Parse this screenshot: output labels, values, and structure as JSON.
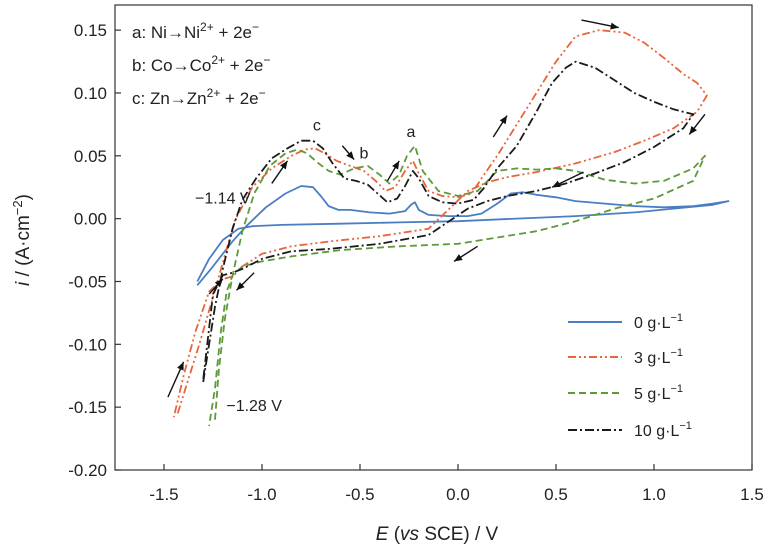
{
  "chart_data": {
    "type": "line",
    "title": "",
    "xlabel": "E (vs SCE) / V",
    "xlabel_parts": {
      "var": "E",
      "open": " (",
      "vs": "vs",
      "rest": " SCE) / V"
    },
    "ylabel": "i / (A·cm⁻²)",
    "ylabel_parts": {
      "var": "i",
      "rest": " / (A·cm",
      "exp": "−2",
      "close": ")"
    },
    "xlim": [
      -1.75,
      1.5
    ],
    "ylim": [
      -0.2,
      0.17
    ],
    "xticks": [
      "-1.5",
      "-1.0",
      "-0.5",
      "0.0",
      "0.5",
      "1.0",
      "1.5"
    ],
    "xtick_values": [
      -1.5,
      -1.0,
      -0.5,
      0.0,
      0.5,
      1.0,
      1.5
    ],
    "yticks": [
      "0.15",
      "0.10",
      "0.05",
      "0.00",
      "-0.05",
      "-0.10",
      "-0.15",
      "-0.20"
    ],
    "ytick_values": [
      0.15,
      0.1,
      0.05,
      0.0,
      -0.05,
      -0.1,
      -0.15,
      -0.2
    ],
    "grid": false,
    "legend_position": "bottom-right",
    "reactions": [
      {
        "prefix": "a: Ni",
        "ion": "Ni",
        "charge": "2+",
        "suffix": " + 2e",
        "e": "−"
      },
      {
        "prefix": "b: Co",
        "ion": "Co",
        "charge": "2+",
        "suffix": " + 2e",
        "e": "−"
      },
      {
        "prefix": "c: Zn",
        "ion": "Zn",
        "charge": "2+",
        "suffix": " + 2e",
        "e": "−"
      }
    ],
    "annotations": [
      {
        "text": "c",
        "x": -0.72,
        "y": 0.07
      },
      {
        "text": "b",
        "x": -0.48,
        "y": 0.048
      },
      {
        "text": "a",
        "x": -0.24,
        "y": 0.065
      },
      {
        "text": "−1.14 V",
        "x": -1.2,
        "y": 0.012
      },
      {
        "text": "−1.28 V",
        "x": -1.04,
        "y": -0.153
      }
    ],
    "arrows": [
      {
        "x1": 0.63,
        "y1": 0.158,
        "x2": 0.82,
        "y2": 0.152
      },
      {
        "x1": 0.18,
        "y1": 0.065,
        "x2": 0.25,
        "y2": 0.082
      },
      {
        "x1": 1.26,
        "y1": 0.083,
        "x2": 1.18,
        "y2": 0.067
      },
      {
        "x1": 0.64,
        "y1": 0.037,
        "x2": 0.48,
        "y2": 0.025
      },
      {
        "x1": 0.1,
        "y1": -0.022,
        "x2": -0.02,
        "y2": -0.034
      },
      {
        "x1": -1.04,
        "y1": -0.043,
        "x2": -1.13,
        "y2": -0.057
      },
      {
        "x1": -1.27,
        "y1": -0.06,
        "x2": -1.2,
        "y2": -0.048
      },
      {
        "x1": -1.48,
        "y1": -0.142,
        "x2": -1.4,
        "y2": -0.114
      },
      {
        "x1": -0.95,
        "y1": 0.028,
        "x2": -0.87,
        "y2": 0.046
      },
      {
        "x1": -0.59,
        "y1": 0.058,
        "x2": -0.53,
        "y2": 0.047
      },
      {
        "x1": -0.36,
        "y1": 0.03,
        "x2": -0.3,
        "y2": 0.046
      }
    ],
    "series": [
      {
        "name": "0 g·L",
        "exp": "−1",
        "color": "#4a7ec2",
        "dash": "solid",
        "x": [
          -1.33,
          -1.26,
          -1.2,
          -1.15,
          -1.08,
          -0.98,
          -0.88,
          -0.8,
          -0.74,
          -0.7,
          -0.66,
          -0.61,
          -0.55,
          -0.45,
          -0.35,
          -0.27,
          -0.24,
          -0.22,
          -0.2,
          -0.15,
          -0.05,
          0.05,
          0.12,
          0.2,
          0.27,
          0.33,
          0.4,
          0.5,
          0.6,
          0.75,
          0.9,
          1.05,
          1.2,
          1.3,
          1.38,
          1.3,
          1.1,
          0.9,
          0.6,
          0.3,
          0.0,
          -0.3,
          -0.6,
          -0.9,
          -1.05,
          -1.12,
          -1.2,
          -1.27,
          -1.33
        ],
        "y": [
          -0.053,
          -0.04,
          -0.028,
          -0.018,
          -0.006,
          0.009,
          0.02,
          0.026,
          0.025,
          0.018,
          0.01,
          0.007,
          0.007,
          0.005,
          0.004,
          0.006,
          0.011,
          0.013,
          0.007,
          0.003,
          0.002,
          0.002,
          0.004,
          0.012,
          0.02,
          0.021,
          0.019,
          0.017,
          0.014,
          0.012,
          0.01,
          0.009,
          0.01,
          0.012,
          0.014,
          0.011,
          0.008,
          0.005,
          0.002,
          0.0,
          -0.002,
          -0.003,
          -0.004,
          -0.005,
          -0.006,
          -0.008,
          -0.017,
          -0.032,
          -0.05
        ]
      },
      {
        "name": "3 g·L",
        "exp": "−1",
        "color": "#e8643c",
        "dash": "8,3,2,3,2,3",
        "x": [
          -1.43,
          -1.38,
          -1.32,
          -1.26,
          -1.2,
          -1.14,
          -1.05,
          -0.95,
          -0.85,
          -0.78,
          -0.73,
          -0.68,
          -0.62,
          -0.55,
          -0.48,
          -0.42,
          -0.37,
          -0.32,
          -0.27,
          -0.23,
          -0.2,
          -0.15,
          -0.08,
          0.0,
          0.07,
          0.12,
          0.2,
          0.3,
          0.4,
          0.5,
          0.6,
          0.72,
          0.85,
          0.95,
          1.05,
          1.15,
          1.22,
          1.26,
          1.27,
          1.22,
          1.1,
          0.95,
          0.8,
          0.6,
          0.4,
          0.25,
          0.15,
          0.05,
          -0.15,
          -0.4,
          -0.65,
          -0.85,
          -1.0,
          -1.1,
          -1.15,
          -1.2,
          -1.27,
          -1.34,
          -1.4,
          -1.45
        ],
        "y": [
          -0.155,
          -0.13,
          -0.1,
          -0.068,
          -0.035,
          -0.002,
          0.025,
          0.04,
          0.05,
          0.055,
          0.056,
          0.052,
          0.046,
          0.042,
          0.038,
          0.03,
          0.022,
          0.025,
          0.038,
          0.046,
          0.036,
          0.022,
          0.018,
          0.017,
          0.02,
          0.032,
          0.05,
          0.075,
          0.1,
          0.125,
          0.145,
          0.15,
          0.148,
          0.14,
          0.128,
          0.115,
          0.108,
          0.1,
          0.098,
          0.085,
          0.072,
          0.062,
          0.053,
          0.044,
          0.037,
          0.033,
          0.029,
          0.022,
          -0.008,
          -0.014,
          -0.018,
          -0.022,
          -0.028,
          -0.038,
          -0.046,
          -0.048,
          -0.058,
          -0.09,
          -0.125,
          -0.158
        ]
      },
      {
        "name": "5 g·L",
        "exp": "−1",
        "color": "#5c9a3a",
        "dash": "7,4",
        "x": [
          -1.24,
          -1.22,
          -1.19,
          -1.15,
          -1.1,
          -1.04,
          -0.96,
          -0.88,
          -0.82,
          -0.77,
          -0.72,
          -0.66,
          -0.6,
          -0.53,
          -0.46,
          -0.4,
          -0.35,
          -0.3,
          -0.26,
          -0.22,
          -0.18,
          -0.1,
          0.0,
          0.1,
          0.2,
          0.3,
          0.4,
          0.5,
          0.6,
          0.75,
          0.9,
          1.05,
          1.2,
          1.26,
          1.2,
          1.0,
          0.8,
          0.6,
          0.4,
          0.2,
          0.0,
          -0.3,
          -0.6,
          -0.85,
          -1.0,
          -1.1,
          -1.15,
          -1.18,
          -1.21,
          -1.24,
          -1.27
        ],
        "y": [
          -0.16,
          -0.12,
          -0.08,
          -0.045,
          -0.01,
          0.02,
          0.042,
          0.052,
          0.055,
          0.052,
          0.045,
          0.038,
          0.035,
          0.04,
          0.042,
          0.035,
          0.028,
          0.035,
          0.05,
          0.058,
          0.038,
          0.022,
          0.018,
          0.022,
          0.038,
          0.04,
          0.039,
          0.04,
          0.038,
          0.031,
          0.028,
          0.03,
          0.04,
          0.05,
          0.03,
          0.016,
          0.008,
          -0.002,
          -0.01,
          -0.015,
          -0.02,
          -0.022,
          -0.025,
          -0.03,
          -0.034,
          -0.038,
          -0.045,
          -0.058,
          -0.09,
          -0.135,
          -0.165
        ]
      },
      {
        "name": "10 g·L",
        "exp": "−1",
        "color": "#1a1a1a",
        "dash": "9,3,2,3",
        "x": [
          -1.3,
          -1.27,
          -1.24,
          -1.2,
          -1.15,
          -1.1,
          -1.03,
          -0.95,
          -0.87,
          -0.8,
          -0.74,
          -0.69,
          -0.64,
          -0.58,
          -0.52,
          -0.46,
          -0.41,
          -0.36,
          -0.31,
          -0.27,
          -0.23,
          -0.2,
          -0.15,
          -0.08,
          0.0,
          0.08,
          0.13,
          0.2,
          0.3,
          0.4,
          0.48,
          0.55,
          0.6,
          0.7,
          0.8,
          0.9,
          1.0,
          1.1,
          1.2,
          1.15,
          1.0,
          0.85,
          0.7,
          0.55,
          0.4,
          0.25,
          0.15,
          0.05,
          -0.15,
          -0.4,
          -0.65,
          -0.85,
          -1.0,
          -1.1,
          -1.15,
          -1.2,
          -1.25,
          -1.3
        ],
        "y": [
          -0.13,
          -0.1,
          -0.07,
          -0.04,
          -0.008,
          0.015,
          0.032,
          0.048,
          0.056,
          0.062,
          0.062,
          0.056,
          0.044,
          0.032,
          0.03,
          0.027,
          0.02,
          0.013,
          0.016,
          0.026,
          0.038,
          0.032,
          0.018,
          0.013,
          0.012,
          0.015,
          0.024,
          0.04,
          0.058,
          0.085,
          0.108,
          0.12,
          0.125,
          0.12,
          0.11,
          0.1,
          0.093,
          0.087,
          0.083,
          0.072,
          0.057,
          0.045,
          0.036,
          0.028,
          0.022,
          0.018,
          0.014,
          0.008,
          -0.013,
          -0.02,
          -0.024,
          -0.026,
          -0.032,
          -0.04,
          -0.043,
          -0.045,
          -0.06,
          -0.128
        ]
      }
    ]
  }
}
